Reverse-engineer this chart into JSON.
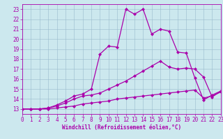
{
  "xlabel": "Windchill (Refroidissement éolien,°C)",
  "background_color": "#cce8ee",
  "line_color": "#aa00aa",
  "xlim": [
    0,
    23
  ],
  "ylim": [
    12.5,
    23.5
  ],
  "xticks": [
    0,
    1,
    2,
    3,
    4,
    5,
    6,
    7,
    8,
    9,
    10,
    11,
    12,
    13,
    14,
    15,
    16,
    17,
    18,
    19,
    20,
    21,
    22,
    23
  ],
  "yticks": [
    13,
    14,
    15,
    16,
    17,
    18,
    19,
    20,
    21,
    22,
    23
  ],
  "line1_x": [
    0,
    1,
    2,
    3,
    4,
    5,
    6,
    7,
    8,
    9,
    10,
    11,
    12,
    13,
    14,
    15,
    16,
    17,
    18,
    19,
    20,
    21,
    22,
    23
  ],
  "line1_y": [
    13,
    13,
    13,
    13,
    13.1,
    13.2,
    13.3,
    13.5,
    13.6,
    13.7,
    13.8,
    14.0,
    14.1,
    14.2,
    14.3,
    14.4,
    14.5,
    14.6,
    14.7,
    14.8,
    14.9,
    14.1,
    14.3,
    14.7
  ],
  "line2_x": [
    0,
    1,
    2,
    3,
    4,
    5,
    6,
    7,
    8,
    9,
    10,
    11,
    12,
    13,
    14,
    15,
    16,
    17,
    18,
    19,
    20,
    21,
    22,
    23
  ],
  "line2_y": [
    13,
    13,
    13,
    13.1,
    13.3,
    13.6,
    14.0,
    14.3,
    14.4,
    14.6,
    15.0,
    15.4,
    15.8,
    16.3,
    16.8,
    17.3,
    17.8,
    17.2,
    17.0,
    17.1,
    17.0,
    16.2,
    14.2,
    14.8
  ],
  "line3_x": [
    0,
    1,
    2,
    3,
    4,
    5,
    6,
    7,
    8,
    9,
    10,
    11,
    12,
    13,
    14,
    15,
    16,
    17,
    18,
    19,
    20,
    21,
    22,
    23
  ],
  "line3_y": [
    13,
    13,
    13,
    13.1,
    13.4,
    13.8,
    14.3,
    14.5,
    15.0,
    18.5,
    19.3,
    19.2,
    23.0,
    22.5,
    23.0,
    20.5,
    21.0,
    20.8,
    18.7,
    18.6,
    16.1,
    13.9,
    14.4,
    14.8
  ],
  "grid_color": "#99bbcc",
  "marker": "D",
  "markersize": 2,
  "linewidth": 0.9,
  "tick_fontsize": 5.5,
  "xlabel_fontsize": 5.5
}
